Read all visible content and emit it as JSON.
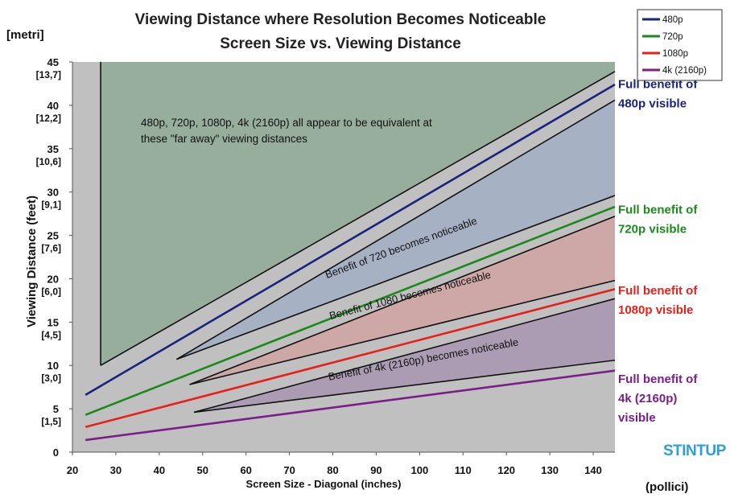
{
  "chart_data": {
    "type": "line",
    "title": "Viewing Distance where Resolution Becomes Noticeable",
    "subtitle": "Screen Size vs. Viewing Distance",
    "xlabel": "Screen Size - Diagonal (inches)",
    "xlabel_unit": "(pollici)",
    "ylabel": "Viewing Distance (feet)",
    "ylabel_unit": "[metri]",
    "xlim": [
      20,
      145
    ],
    "ylim": [
      0,
      45
    ],
    "x_ticks": [
      20,
      30,
      40,
      50,
      60,
      70,
      80,
      90,
      100,
      110,
      120,
      130,
      140
    ],
    "y_ticks": [
      {
        "value": 0,
        "label": "0",
        "sub": ""
      },
      {
        "value": 5,
        "label": "5",
        "sub": "[1,5]"
      },
      {
        "value": 10,
        "label": "10",
        "sub": "[3,0]"
      },
      {
        "value": 15,
        "label": "15",
        "sub": "[4,5]"
      },
      {
        "value": 20,
        "label": "20",
        "sub": "[6,0]"
      },
      {
        "value": 25,
        "label": "25",
        "sub": "[7,6]"
      },
      {
        "value": 30,
        "label": "30",
        "sub": "[9,1]"
      },
      {
        "value": 35,
        "label": "35",
        "sub": "[10,6]"
      },
      {
        "value": 40,
        "label": "40",
        "sub": "[12,2]"
      },
      {
        "value": 45,
        "label": "45",
        "sub": "[13,7]"
      }
    ],
    "series": [
      {
        "name": "480p",
        "color": "#1a237e",
        "x": [
          23,
          145
        ],
        "y": [
          6.6,
          42.4
        ]
      },
      {
        "name": "720p",
        "color": "#1a8a1a",
        "x": [
          23,
          145
        ],
        "y": [
          4.3,
          28.3
        ]
      },
      {
        "name": "1080p",
        "color": "#e8201a",
        "x": [
          23,
          145
        ],
        "y": [
          2.9,
          18.8
        ]
      },
      {
        "name": "4k (2160p)",
        "color": "#7b1e8a",
        "x": [
          23,
          145
        ],
        "y": [
          1.4,
          9.4
        ]
      }
    ],
    "boundaries": [
      {
        "name": "far-away-start",
        "x": [
          26.5,
          26.5
        ],
        "y": [
          45,
          10
        ]
      },
      {
        "name": "far-away-boundary",
        "x": [
          26.5,
          145
        ],
        "y": [
          10,
          43.9
        ]
      },
      {
        "name": "benefit-720-upper",
        "x": [
          44,
          145
        ],
        "y": [
          10.7,
          40.6
        ]
      },
      {
        "name": "benefit-720-lower",
        "x": [
          44,
          145
        ],
        "y": [
          10.7,
          29.6
        ]
      },
      {
        "name": "benefit-1080-upper",
        "x": [
          47,
          145
        ],
        "y": [
          7.8,
          27.2
        ]
      },
      {
        "name": "benefit-1080-lower",
        "x": [
          47,
          145
        ],
        "y": [
          7.8,
          19.8
        ]
      },
      {
        "name": "benefit-4k-upper",
        "x": [
          48,
          145
        ],
        "y": [
          4.6,
          17.7
        ]
      },
      {
        "name": "benefit-4k-lower",
        "x": [
          48,
          145
        ],
        "y": [
          4.6,
          10.6
        ]
      }
    ],
    "regions": [
      {
        "name": "far-away",
        "color": "#97ae9c"
      },
      {
        "name": "benefit-720",
        "color": "#a6b1c4"
      },
      {
        "name": "benefit-1080",
        "color": "#cea8a7"
      },
      {
        "name": "benefit-4k",
        "color": "#ab9cb3"
      }
    ],
    "plot_background": "#c0c0c0",
    "annotation": [
      "480p, 720p, 1080p, 4k (2160p) all appear to be equivalent at",
      "these \"far away\" viewing distances"
    ],
    "band_labels": [
      {
        "text": "Benefit of 720 becomes noticeable",
        "x": 96,
        "y": 23.2
      },
      {
        "text": "Benefit of 1080 becomes noticeable",
        "x": 98,
        "y": 17.7
      },
      {
        "text": "Benefit of 4k (2160p) becomes noticeable",
        "x": 101,
        "y": 10.3
      }
    ],
    "right_labels": [
      {
        "lines": [
          "Full benefit of",
          "480p visible"
        ],
        "color": "#1a237e",
        "y": 42
      },
      {
        "lines": [
          "Full benefit of",
          "720p visible"
        ],
        "color": "#1a8a1a",
        "y": 27.5
      },
      {
        "lines": [
          "Full benefit of",
          "1080p visible"
        ],
        "color": "#e8201a",
        "y": 18.2
      },
      {
        "lines": [
          "Full benefit of",
          "4k (2160p)",
          "visible"
        ],
        "color": "#7b1e8a",
        "y": 8
      }
    ],
    "legend": [
      "480p",
      "720p",
      "1080p",
      "4k (2160p)"
    ],
    "legend_position": "top-right",
    "logo": "STINTUP"
  }
}
